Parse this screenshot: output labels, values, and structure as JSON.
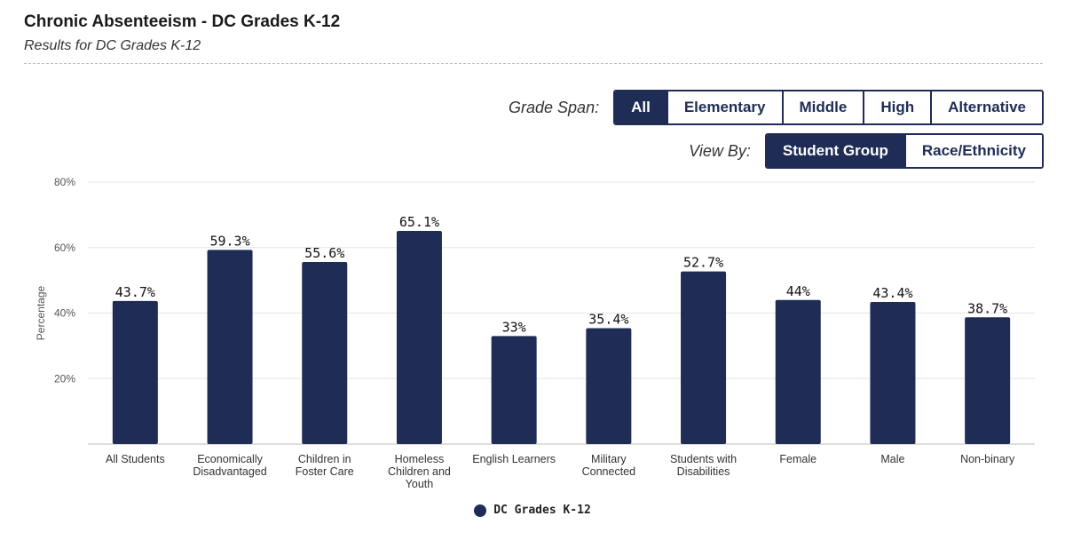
{
  "header": {
    "title": "Chronic Absenteeism - DC Grades K-12",
    "subtitle": "Results for DC Grades K-12"
  },
  "controls": {
    "grade_span": {
      "label": "Grade Span:",
      "options": [
        "All",
        "Elementary",
        "Middle",
        "High",
        "Alternative"
      ],
      "selected": "All"
    },
    "view_by": {
      "label": "View By:",
      "options": [
        "Student Group",
        "Race/Ethnicity"
      ],
      "selected": "Student Group"
    }
  },
  "colors": {
    "bar": "#1f2d56",
    "grid": "#e6e6e6",
    "axis": "#bbbbbb"
  },
  "chart_data": {
    "type": "bar",
    "categories": [
      [
        "All Students"
      ],
      [
        "Economically",
        "Disadvantaged"
      ],
      [
        "Children in",
        "Foster Care"
      ],
      [
        "Homeless",
        "Children and",
        "Youth"
      ],
      [
        "English Learners"
      ],
      [
        "Military",
        "Connected"
      ],
      [
        "Students with",
        "Disabilities"
      ],
      [
        "Female"
      ],
      [
        "Male"
      ],
      [
        "Non-binary"
      ]
    ],
    "series": [
      {
        "name": "DC Grades K-12",
        "values": [
          43.7,
          59.3,
          55.6,
          65.1,
          33,
          35.4,
          52.7,
          44,
          43.4,
          38.7
        ],
        "value_labels": [
          "43.7%",
          "59.3%",
          "55.6%",
          "65.1%",
          "33%",
          "35.4%",
          "52.7%",
          "44%",
          "43.4%",
          "38.7%"
        ]
      }
    ],
    "ylabel": "Percentage",
    "ylim": [
      0,
      80
    ],
    "yticks": [
      20,
      40,
      60,
      80
    ],
    "ytick_labels": [
      "20%",
      "40%",
      "60%",
      "80%"
    ],
    "grid": true,
    "legend_position": "bottom"
  }
}
